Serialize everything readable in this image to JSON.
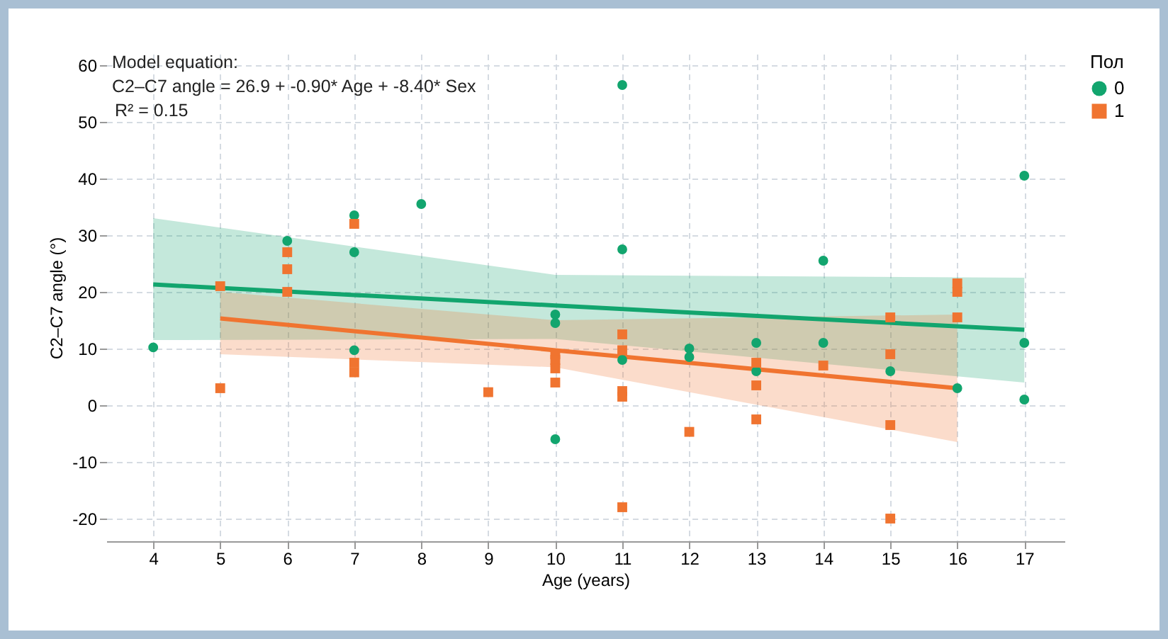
{
  "chart_data": {
    "type": "scatter",
    "xlabel": "Age (years)",
    "ylabel": "C2–C7 angle (°)",
    "legend_title": "Пол",
    "annotations": [
      "Model equation:",
      "C2–C7 angle = 26.9 + -0.90* Age + -8.40* Sex",
      "R² = 0.15"
    ],
    "xlim": [
      3.3,
      17.6
    ],
    "xticks": [
      4,
      5,
      6,
      7,
      8,
      9,
      10,
      11,
      12,
      13,
      14,
      15,
      16,
      17
    ],
    "ylim": [
      -24,
      62
    ],
    "yticks": [
      -20,
      -10,
      0,
      10,
      20,
      30,
      40,
      50,
      60
    ],
    "grid": true,
    "legend": "right",
    "series": [
      {
        "type": "line",
        "color": "#12a56e",
        "marker": "none",
        "line_style": "solid",
        "x": [
          4,
          10,
          17
        ],
        "values": [
          21.3,
          17.6,
          13.3
        ],
        "lower": [
          11.5,
          11.7,
          4
        ],
        "upper": [
          33,
          23,
          22.5
        ]
      },
      {
        "type": "line",
        "color": "#f07430",
        "marker": "none",
        "line_style": "solid",
        "x": [
          5,
          10,
          16
        ],
        "values": [
          15.3,
          9.7,
          3
        ],
        "lower": [
          9,
          6.7,
          -6.5
        ],
        "upper": [
          20,
          15,
          16
        ]
      },
      {
        "name": "0",
        "type": "scatter",
        "color": "#12a56e",
        "marker": "circle",
        "x": [
          4,
          6,
          7,
          7,
          7,
          8,
          10,
          10,
          10,
          11,
          11,
          11,
          12,
          12,
          13,
          13,
          14,
          14,
          15,
          16,
          17,
          17,
          17
        ],
        "values": [
          10.2,
          29,
          33.5,
          27,
          9.7,
          35.5,
          16,
          14.5,
          -6,
          56.5,
          27.5,
          8,
          10,
          8.5,
          11,
          6,
          25.5,
          11,
          6,
          3,
          40.5,
          11,
          1
        ]
      },
      {
        "name": "1",
        "type": "scatter",
        "color": "#f07430",
        "marker": "square",
        "x": [
          5,
          5,
          6,
          6,
          6,
          7,
          7,
          7,
          9,
          10,
          10,
          10,
          10,
          11,
          11,
          11,
          11,
          11,
          12,
          13,
          13,
          13,
          14,
          15,
          15,
          15,
          15,
          16,
          16,
          16
        ],
        "values": [
          21,
          3,
          27,
          24,
          20,
          32,
          7.5,
          5.8,
          2.3,
          9,
          8,
          6.5,
          4,
          12.5,
          9.7,
          2.5,
          1.5,
          -18,
          -4.7,
          7.5,
          3.5,
          -2.5,
          7,
          15.5,
          9,
          -3.5,
          -20,
          21.5,
          20,
          15.5
        ]
      }
    ]
  }
}
